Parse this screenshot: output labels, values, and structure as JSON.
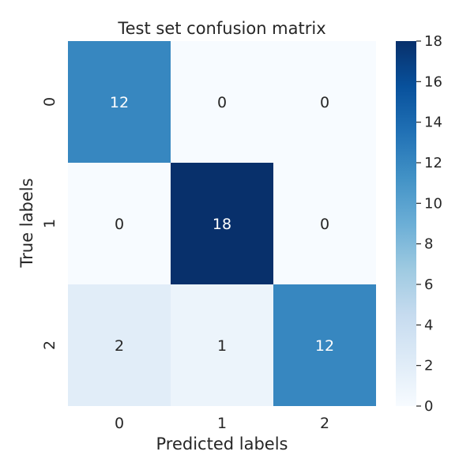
{
  "chart_data": {
    "type": "heatmap",
    "title": "Test set confusion matrix",
    "xlabel": "Predicted labels",
    "ylabel": "True labels",
    "x_categories": [
      "0",
      "1",
      "2"
    ],
    "y_categories": [
      "0",
      "1",
      "2"
    ],
    "values": [
      [
        12,
        0,
        0
      ],
      [
        0,
        18,
        0
      ],
      [
        2,
        1,
        12
      ]
    ],
    "colormap": "Blues",
    "colormap_stops": [
      "#f7fbff",
      "#deebf7",
      "#c6dbef",
      "#9ecae1",
      "#6baed6",
      "#4292c6",
      "#2171b5",
      "#08519c",
      "#08306b"
    ],
    "colorbar": {
      "range": [
        0,
        18
      ],
      "ticks": [
        0,
        2,
        4,
        6,
        8,
        10,
        12,
        14,
        16,
        18
      ]
    },
    "annotation_colors": {
      "light": "#ffffff",
      "dark": "#262626"
    }
  }
}
